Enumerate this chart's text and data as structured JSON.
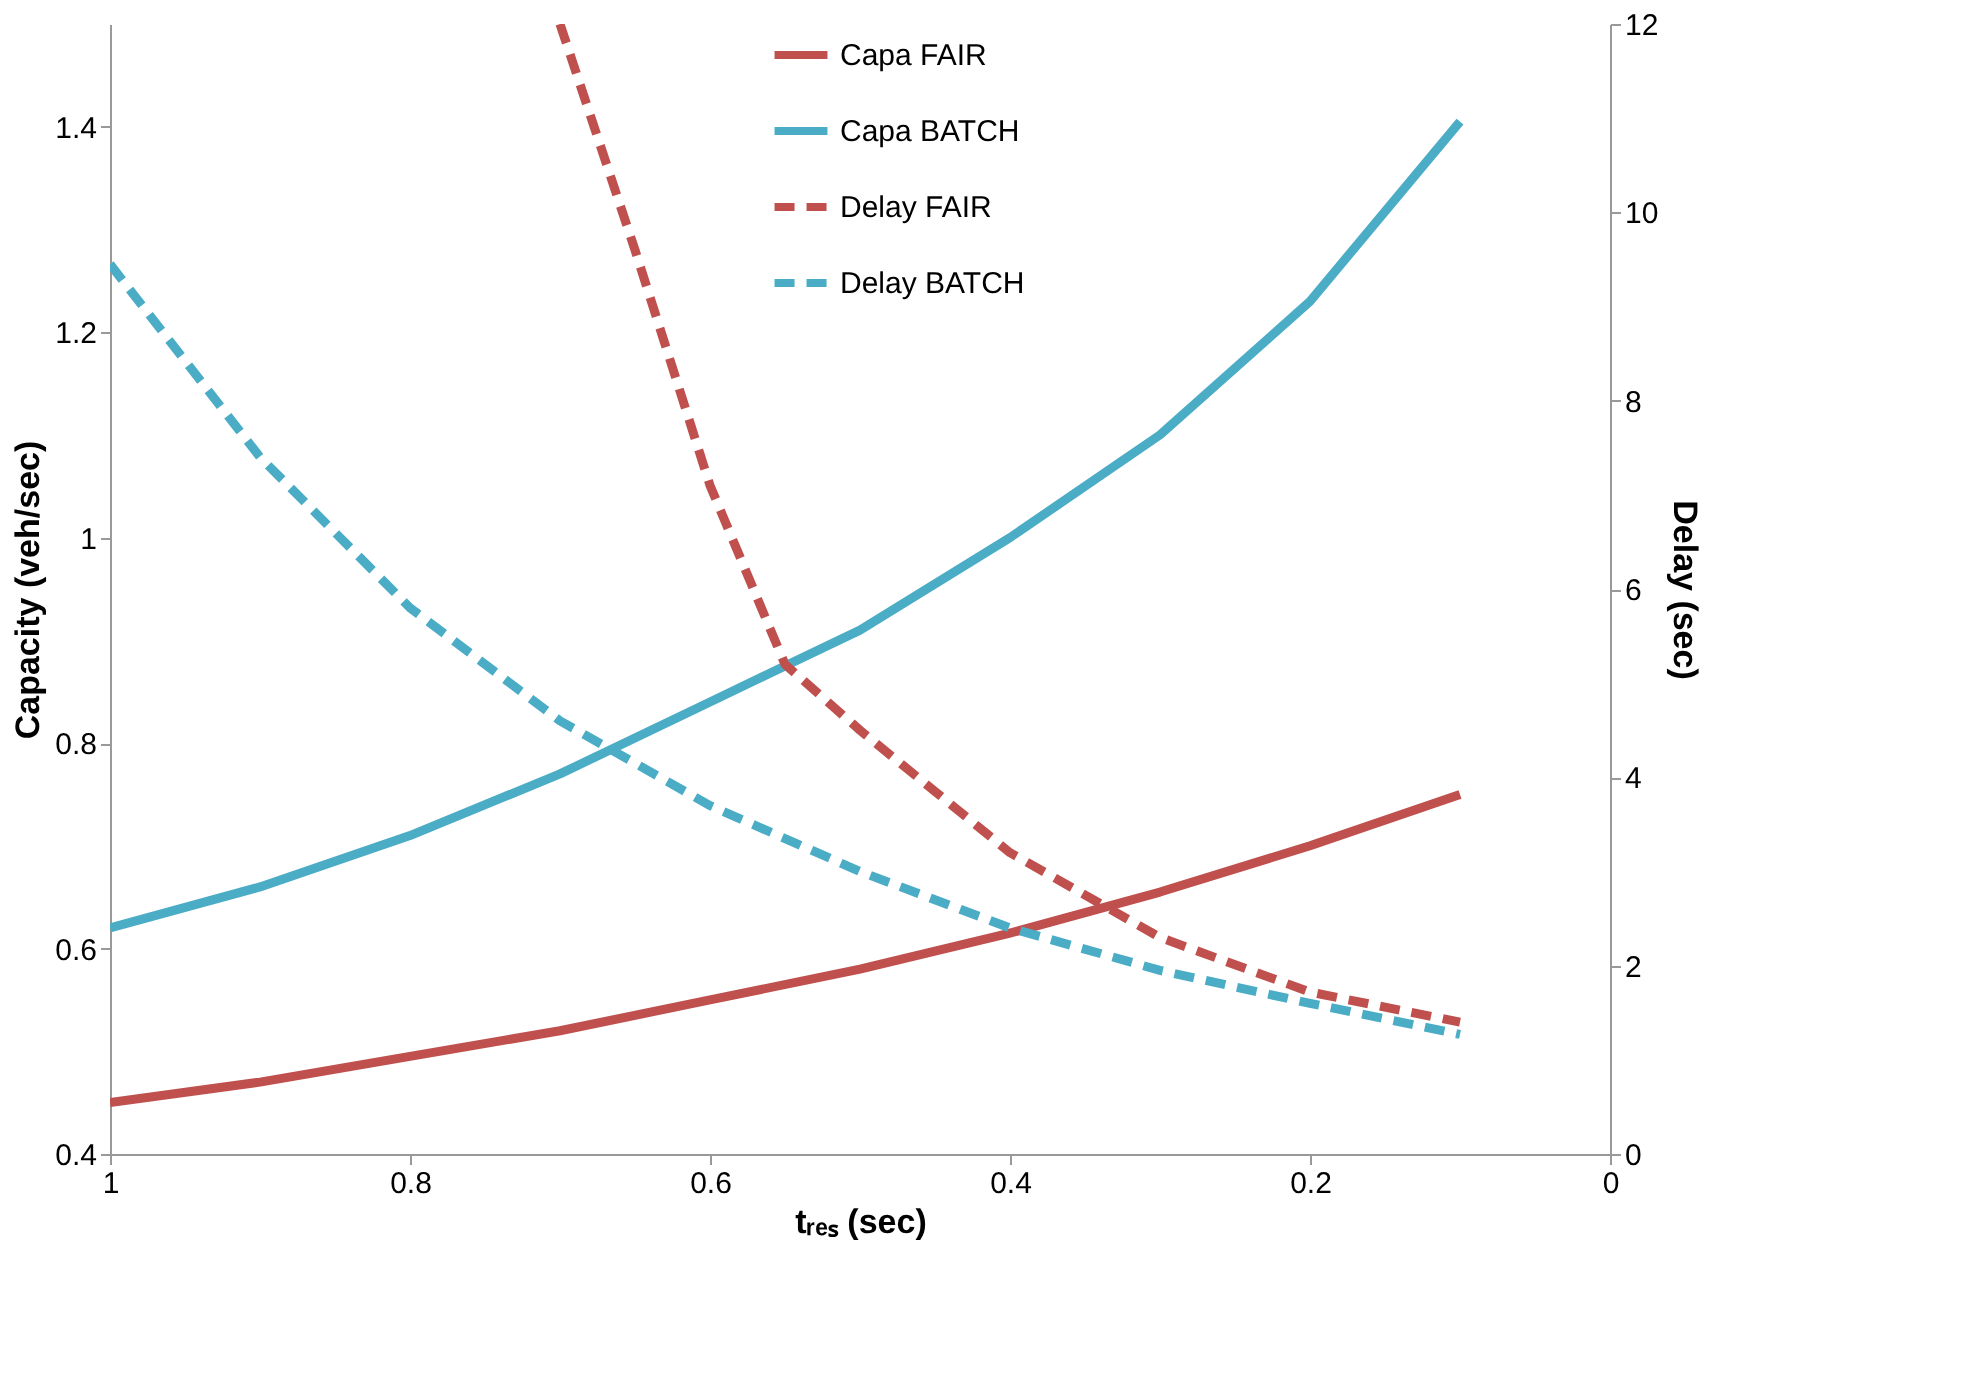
{
  "chart_data": {
    "type": "line",
    "xlabel": "tᵣₑₛ (sec)",
    "ylabel": "Capacity (veh/sec)",
    "y2label": "Delay (sec)",
    "xlim": [
      1,
      0
    ],
    "xticks": [
      1,
      0.8,
      0.6,
      0.4,
      0.2,
      0
    ],
    "ylim": [
      0.4,
      1.5
    ],
    "yticks": [
      0.4,
      0.6,
      0.8,
      1,
      1.2,
      1.4
    ],
    "y2lim": [
      0,
      12
    ],
    "y2ticks": [
      0,
      2,
      4,
      6,
      8,
      10,
      12
    ],
    "grid": false,
    "legend": "top right",
    "marker": "none",
    "series": [
      {
        "name": "Capa FAIR",
        "color": "#c0504d",
        "line_style": "solid",
        "x": [
          1,
          0.9,
          0.8,
          0.7,
          0.6,
          0.5,
          0.4,
          0.3,
          0.2,
          0.1
        ],
        "values": [
          0.45,
          0.47,
          0.495,
          0.52,
          0.55,
          0.58,
          0.615,
          0.655,
          0.7,
          0.75
        ]
      },
      {
        "name": "Capa BATCH",
        "color": "#4bacc6",
        "line_style": "solid",
        "x": [
          1,
          0.9,
          0.8,
          0.7,
          0.6,
          0.5,
          0.4,
          0.3,
          0.2,
          0.1
        ],
        "values": [
          0.62,
          0.66,
          0.71,
          0.77,
          0.84,
          0.91,
          1.0,
          1.1,
          1.23,
          1.405
        ]
      },
      {
        "name": "Delay FAIR",
        "color": "#c0504d",
        "line_style": "dashed",
        "axis": "y2",
        "x": [
          0.7,
          0.65,
          0.6,
          0.55,
          0.5,
          0.45,
          0.4,
          0.3,
          0.2,
          0.1
        ],
        "values": [
          12,
          9.6,
          7.1,
          5.2,
          4.5,
          3.85,
          3.2,
          2.3,
          1.72,
          1.4
        ]
      },
      {
        "name": "Delay BATCH",
        "color": "#4bacc6",
        "line_style": "dashed",
        "axis": "y2",
        "x": [
          1,
          0.9,
          0.8,
          0.7,
          0.6,
          0.5,
          0.4,
          0.3,
          0.2,
          0.1
        ],
        "values": [
          9.45,
          7.4,
          5.8,
          4.6,
          3.7,
          3.0,
          2.4,
          1.95,
          1.6,
          1.27
        ]
      }
    ]
  }
}
